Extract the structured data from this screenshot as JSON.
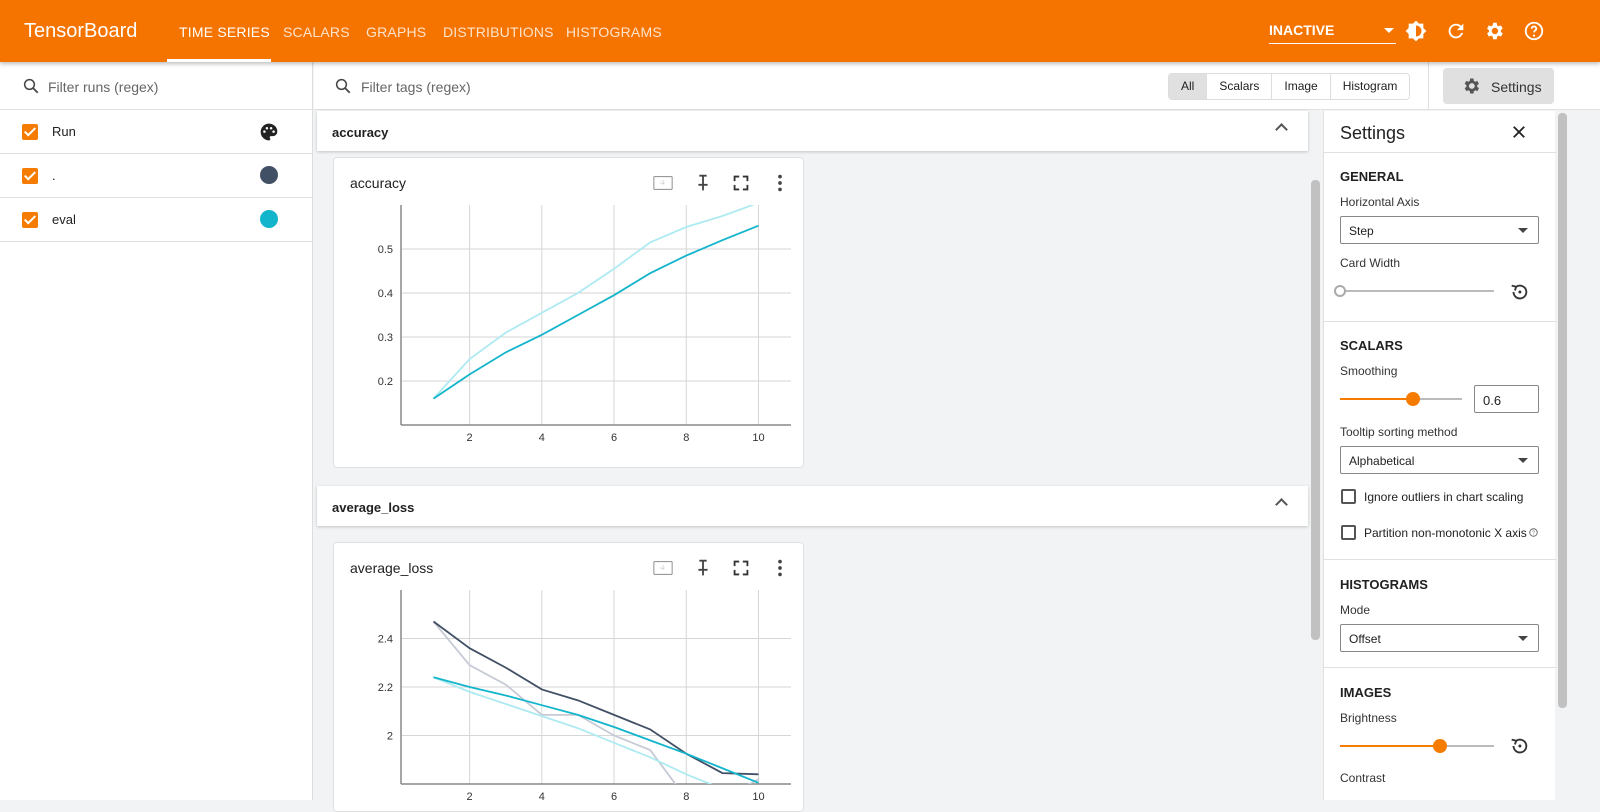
{
  "app": {
    "title": "TensorBoard",
    "tabs": [
      "TIME SERIES",
      "SCALARS",
      "GRAPHS",
      "DISTRIBUTIONS",
      "HISTOGRAMS"
    ],
    "active_tab": "TIME SERIES",
    "run_status": "INACTIVE",
    "accent": "#f57400"
  },
  "sidebar": {
    "filter_placeholder": "Filter runs (regex)",
    "header": "Run",
    "runs": [
      {
        "name": ".",
        "color": "#425066",
        "checked": true
      },
      {
        "name": "eval",
        "color": "#12b5cb",
        "checked": true
      }
    ]
  },
  "main": {
    "filter_placeholder": "Filter tags (regex)",
    "type_filters": [
      "All",
      "Scalars",
      "Image",
      "Histogram"
    ],
    "active_filter": "All",
    "settings_button": "Settings"
  },
  "groups": [
    {
      "name": "accuracy",
      "card_title": "accuracy"
    },
    {
      "name": "average_loss",
      "card_title": "average_loss"
    }
  ],
  "settings": {
    "title": "Settings",
    "general": "GENERAL",
    "horizontal_axis_label": "Horizontal Axis",
    "horizontal_axis": "Step",
    "card_width_label": "Card Width",
    "card_width": 0,
    "scalars": "SCALARS",
    "smoothing_label": "Smoothing",
    "smoothing": 0.6,
    "smoothing_text": "0.6",
    "tooltip_label": "Tooltip sorting method",
    "tooltip": "Alphabetical",
    "ignore_outliers": "Ignore outliers in chart scaling",
    "partition": "Partition non-monotonic X axis",
    "histograms": "HISTOGRAMS",
    "mode_label": "Mode",
    "mode": "Offset",
    "images": "IMAGES",
    "brightness_label": "Brightness",
    "brightness": 0.65,
    "contrast_label": "Contrast"
  },
  "chart_data": [
    {
      "type": "line",
      "title": "accuracy",
      "xlim": [
        0.1,
        10.9
      ],
      "ylim": [
        0.1,
        0.6
      ],
      "xticks": [
        "2",
        "4",
        "6",
        "8",
        "10"
      ],
      "yticks": [
        "0.2",
        "0.3",
        "0.4",
        "0.5"
      ],
      "grid": true,
      "x": [
        1,
        2,
        3,
        4,
        5,
        6,
        7,
        8,
        9,
        10
      ],
      "series": [
        {
          "name": "eval",
          "raw": [
            0.16,
            0.25,
            0.31,
            0.355,
            0.4,
            0.455,
            0.515,
            0.55,
            0.575,
            0.605
          ],
          "smoothed": [
            0.16,
            0.215,
            0.265,
            0.305,
            0.35,
            0.395,
            0.445,
            0.485,
            0.52,
            0.553
          ],
          "color": "#12b5cb",
          "raw_color": "#aeeaf2"
        }
      ]
    },
    {
      "type": "line",
      "title": "average_loss",
      "xlim": [
        0.1,
        10.9
      ],
      "ylim": [
        1.8,
        2.6
      ],
      "xticks": [
        "2",
        "4",
        "6",
        "8",
        "10"
      ],
      "yticks": [
        "2.4",
        "2.2",
        "2"
      ],
      "grid": true,
      "x": [
        1,
        2,
        3,
        4,
        5,
        6,
        7,
        8,
        9,
        10
      ],
      "series": [
        {
          "name": ".",
          "raw": [
            2.47,
            2.29,
            2.21,
            2.085,
            2.085,
            2.0,
            1.94,
            1.74,
            1.74,
            1.82
          ],
          "smoothed": [
            2.47,
            2.36,
            2.28,
            2.19,
            2.145,
            2.085,
            2.025,
            1.925,
            1.845,
            1.84
          ],
          "color": "#425066",
          "raw_color": "#c6cad4"
        },
        {
          "name": "eval",
          "raw": [
            2.24,
            2.18,
            2.13,
            2.08,
            2.03,
            1.97,
            1.91,
            1.84,
            1.78,
            1.72
          ],
          "smoothed": [
            2.24,
            2.2,
            2.165,
            2.125,
            2.085,
            2.035,
            1.98,
            1.925,
            1.865,
            1.805
          ],
          "color": "#12b5cb",
          "raw_color": "#aeeaf2"
        }
      ]
    }
  ]
}
